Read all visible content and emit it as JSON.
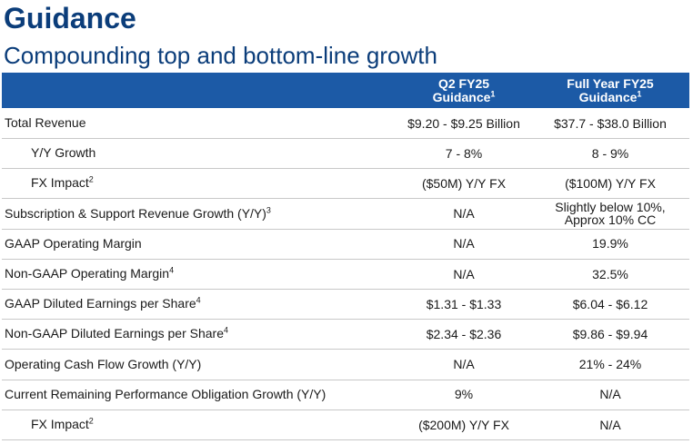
{
  "page": {
    "title": "Guidance",
    "subtitle": "Compounding top and bottom-line growth"
  },
  "table": {
    "columns": [
      {
        "line1": "Q2 FY25",
        "line2": "Guidance",
        "note": "1"
      },
      {
        "line1": "Full Year FY25",
        "line2": "Guidance",
        "note": "1"
      }
    ],
    "rows": [
      {
        "label": "Total Revenue",
        "note": "",
        "indent": false,
        "q2": [
          "$9.20 - $9.25 Billion"
        ],
        "fy": [
          "$37.7 - $38.0 Billion"
        ]
      },
      {
        "label": "Y/Y Growth",
        "note": "",
        "indent": true,
        "q2": [
          "7 - 8%"
        ],
        "fy": [
          "8 - 9%"
        ]
      },
      {
        "label": "FX Impact",
        "note": "2",
        "indent": true,
        "q2": [
          "($50M) Y/Y FX"
        ],
        "fy": [
          "($100M) Y/Y FX"
        ]
      },
      {
        "label": "Subscription & Support Revenue Growth (Y/Y)",
        "note": "3",
        "indent": false,
        "q2": [
          "N/A"
        ],
        "fy": [
          "Slightly below 10%,",
          "Approx 10% CC"
        ]
      },
      {
        "label": "GAAP Operating Margin",
        "note": "",
        "indent": false,
        "q2": [
          "N/A"
        ],
        "fy": [
          "19.9%"
        ]
      },
      {
        "label": "Non-GAAP Operating Margin",
        "note": "4",
        "indent": false,
        "q2": [
          "N/A"
        ],
        "fy": [
          "32.5%"
        ]
      },
      {
        "label": "GAAP Diluted Earnings per Share",
        "note": "4",
        "indent": false,
        "q2": [
          "$1.31 - $1.33"
        ],
        "fy": [
          "$6.04 - $6.12"
        ]
      },
      {
        "label": "Non-GAAP Diluted Earnings per Share",
        "note": "4",
        "indent": false,
        "q2": [
          "$2.34 - $2.36"
        ],
        "fy": [
          "$9.86 - $9.94"
        ]
      },
      {
        "label": "Operating Cash Flow Growth (Y/Y)",
        "note": "",
        "indent": false,
        "q2": [
          "N/A"
        ],
        "fy": [
          "21% - 24%"
        ]
      },
      {
        "label": "Current Remaining Performance Obligation Growth (Y/Y)",
        "note": "",
        "indent": false,
        "q2": [
          "9%"
        ],
        "fy": [
          "N/A"
        ]
      },
      {
        "label": "FX Impact",
        "note": "2",
        "indent": true,
        "q2": [
          "($200M) Y/Y FX"
        ],
        "fy": [
          "N/A"
        ]
      }
    ]
  },
  "colors": {
    "title": "#0b3d7a",
    "header_bg": "#1c5aa6",
    "header_text": "#ffffff",
    "row_border": "#c8c8c8"
  }
}
